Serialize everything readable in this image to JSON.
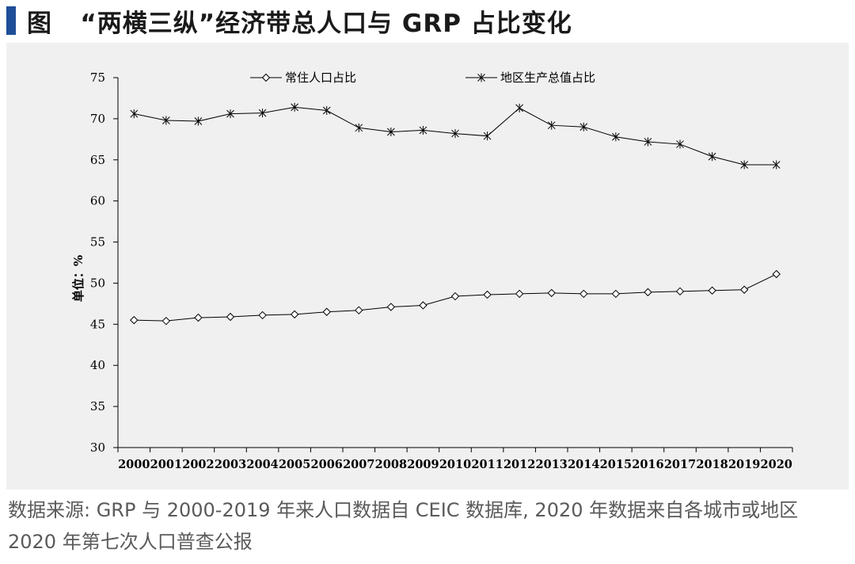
{
  "header": {
    "figure_label": "图",
    "title": "“两横三纵”经济带总人口与 GRP 占比变化"
  },
  "footer": {
    "source": "数据来源: GRP 与 2000-2019 年来人口数据自 CEIC 数据库, 2020 年数据来自各城市或地区 2020 年第七次人口普查公报"
  },
  "colors": {
    "title_mark": "#1f4e99",
    "panel": "#f0f0f0",
    "line": "#000000"
  },
  "chart_data": {
    "type": "line",
    "title": "“两横三纵”经济带总人口与 GRP 占比变化",
    "xlabel": "",
    "ylabel": "单位：%",
    "ylim": [
      30,
      75
    ],
    "yticks": [
      30,
      35,
      40,
      45,
      50,
      55,
      60,
      65,
      70,
      75
    ],
    "categories": [
      "2000",
      "2001",
      "2002",
      "2003",
      "2004",
      "2005",
      "2006",
      "2007",
      "2008",
      "2009",
      "2010",
      "2011",
      "2012",
      "2013",
      "2014",
      "2015",
      "2016",
      "2017",
      "2018",
      "2019",
      "2020"
    ],
    "legend_position": "top",
    "series": [
      {
        "name": "常住人口占比",
        "marker": "diamond-icon",
        "values": [
          45.5,
          45.4,
          45.8,
          45.9,
          46.1,
          46.2,
          46.5,
          46.7,
          47.1,
          47.3,
          48.4,
          48.6,
          48.7,
          48.8,
          48.7,
          48.7,
          48.9,
          49.0,
          49.1,
          49.2,
          51.1
        ]
      },
      {
        "name": "地区生产总值占比",
        "marker": "asterisk-icon",
        "values": [
          70.6,
          69.8,
          69.7,
          70.6,
          70.7,
          71.4,
          71.0,
          68.9,
          68.4,
          68.6,
          68.2,
          67.9,
          71.3,
          69.2,
          69.0,
          67.8,
          67.2,
          66.9,
          65.4,
          64.4,
          64.4
        ]
      }
    ]
  }
}
